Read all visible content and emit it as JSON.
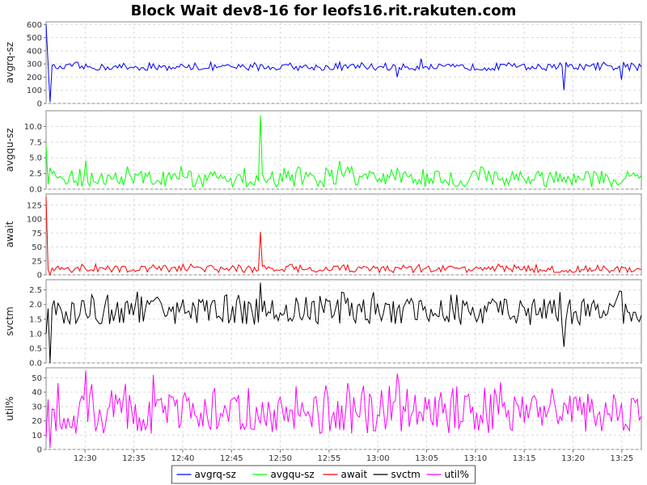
{
  "chart_data": {
    "type": "line",
    "title": "Block Wait dev8-16 for leofs16.rit.rakuten.com",
    "x": {
      "start": "12:26",
      "end": "13:27",
      "ticks": [
        "12:30",
        "12:35",
        "12:40",
        "12:45",
        "12:50",
        "12:55",
        "13:00",
        "13:05",
        "13:10",
        "13:15",
        "13:20",
        "13:25"
      ]
    },
    "panels": [
      {
        "name": "avgrq-sz",
        "ylabel": "avgrq-sz",
        "color": "#0000ff",
        "ylim": [
          0,
          620
        ],
        "yticks": [
          "0",
          "100",
          "200",
          "300",
          "400",
          "500",
          "600"
        ],
        "base": 275,
        "amp": 25,
        "events": [
          {
            "t": "12:26",
            "v": 600
          },
          {
            "t": "12:26.5",
            "v": 10
          },
          {
            "t": "12:27.5",
            "v": 285
          },
          {
            "t": "13:02",
            "v": 200
          },
          {
            "t": "13:04.5",
            "v": 340
          },
          {
            "t": "13:19",
            "v": 100
          },
          {
            "t": "13:25",
            "v": 180
          }
        ]
      },
      {
        "name": "avgqu-sz",
        "ylabel": "avgqu-sz",
        "color": "#00ff00",
        "ylim": [
          0,
          12.5
        ],
        "yticks": [
          "0.0",
          "2.5",
          "5.0",
          "7.5",
          "10.0"
        ],
        "base": 1.6,
        "amp": 1.3,
        "events": [
          {
            "t": "12:26",
            "v": 6.9
          },
          {
            "t": "12:48",
            "v": 11.8
          },
          {
            "t": "12:30",
            "v": 4.5
          },
          {
            "t": "12:56",
            "v": 4.5
          },
          {
            "t": "13:20",
            "v": 2.5
          }
        ]
      },
      {
        "name": "await",
        "ylabel": "await",
        "color": "#ff0000",
        "ylim": [
          0,
          145
        ],
        "yticks": [
          "0",
          "25",
          "50",
          "75",
          "100",
          "125"
        ],
        "base": 10,
        "amp": 6,
        "events": [
          {
            "t": "12:26",
            "v": 140
          },
          {
            "t": "12:26.5",
            "v": 0
          },
          {
            "t": "12:48",
            "v": 77
          }
        ]
      },
      {
        "name": "svctm",
        "ylabel": "svctm",
        "color": "#000000",
        "ylim": [
          0,
          2.85
        ],
        "yticks": [
          "0.0",
          "0.5",
          "1.0",
          "1.5",
          "2.0",
          "2.5"
        ],
        "base": 1.75,
        "amp": 0.45,
        "events": [
          {
            "t": "12:26",
            "v": 1.0
          },
          {
            "t": "12:26.5",
            "v": 0.0
          },
          {
            "t": "12:48",
            "v": 2.75
          },
          {
            "t": "13:19",
            "v": 0.55
          }
        ]
      },
      {
        "name": "util%",
        "ylabel": "util%",
        "color": "#ff00ff",
        "ylim": [
          0,
          57
        ],
        "yticks": [
          "0",
          "10",
          "20",
          "30",
          "40",
          "50"
        ],
        "base": 25,
        "amp": 14,
        "events": [
          {
            "t": "12:26",
            "v": 8
          },
          {
            "t": "12:26.5",
            "v": 1
          },
          {
            "t": "12:30",
            "v": 55
          },
          {
            "t": "13:02",
            "v": 53
          },
          {
            "t": "12:37",
            "v": 52
          }
        ]
      }
    ],
    "legend": {
      "position": "bottom-center",
      "entries": [
        {
          "label": "avgrq-sz",
          "color": "#0000ff"
        },
        {
          "label": "avgqu-sz",
          "color": "#00ff00"
        },
        {
          "label": "await",
          "color": "#ff0000"
        },
        {
          "label": "svctm",
          "color": "#000000"
        },
        {
          "label": "util%",
          "color": "#ff00ff"
        }
      ]
    },
    "grid": true
  }
}
